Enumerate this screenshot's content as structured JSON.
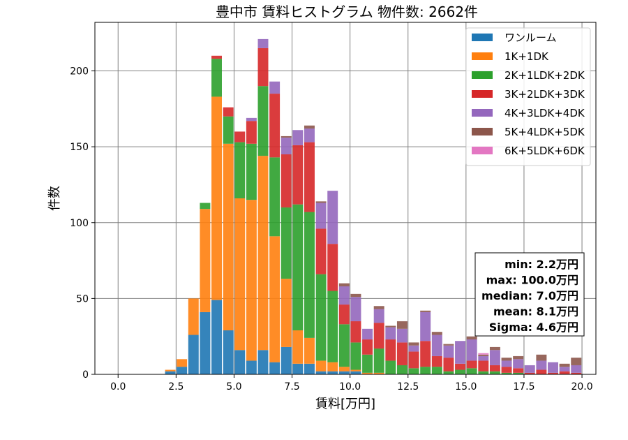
{
  "chart_data": {
    "type": "bar",
    "title": "豊中市 賃料ヒストグラム  物件数: 2662件",
    "xlabel": "賃料[万円]",
    "ylabel": "件数",
    "xlim": [
      -1.0,
      20.6
    ],
    "ylim": [
      0,
      232
    ],
    "xticks": [
      "0.0",
      "2.5",
      "5.0",
      "7.5",
      "10.0",
      "12.5",
      "15.0",
      "17.5",
      "20.0"
    ],
    "xtick_values": [
      0,
      2.5,
      5,
      7.5,
      10,
      12.5,
      15,
      17.5,
      20
    ],
    "yticks": [
      "0",
      "50",
      "100",
      "150",
      "200"
    ],
    "ytick_values": [
      0,
      50,
      100,
      150,
      200
    ],
    "grid": true,
    "legend_position": "top-right",
    "stacked": true,
    "bin_width": 0.5,
    "x": [
      2.0,
      2.5,
      3.0,
      3.5,
      4.0,
      4.5,
      5.0,
      5.5,
      6.0,
      6.5,
      7.0,
      7.5,
      8.0,
      8.5,
      9.0,
      9.5,
      10.0,
      10.5,
      11.0,
      11.5,
      12.0,
      12.5,
      13.0,
      13.5,
      14.0,
      14.5,
      15.0,
      15.5,
      16.0,
      16.5,
      17.0,
      17.5,
      18.0,
      18.5,
      19.0,
      19.5
    ],
    "series": [
      {
        "name": "ワンルーム",
        "color": "#1f77b4",
        "values": [
          2,
          5,
          26,
          41,
          49,
          29,
          16,
          9,
          16,
          8,
          18,
          7,
          7,
          2,
          2,
          2,
          2,
          0,
          0,
          0,
          0,
          0,
          0,
          0,
          0,
          0,
          0,
          0,
          0,
          0,
          0,
          0,
          0,
          0,
          0,
          0
        ]
      },
      {
        "name": "1K+1DK",
        "color": "#ff7f0e",
        "values": [
          1,
          5,
          24,
          68,
          134,
          123,
          100,
          106,
          128,
          83,
          45,
          22,
          17,
          7,
          6,
          3,
          1,
          1,
          1,
          0,
          0,
          0,
          0,
          0,
          0,
          0,
          0,
          0,
          0,
          0,
          0,
          0,
          0,
          0,
          0,
          0
        ]
      },
      {
        "name": "2K+1LDK+2DK",
        "color": "#2ca02c",
        "values": [
          0,
          0,
          0,
          4,
          25,
          18,
          37,
          37,
          46,
          52,
          47,
          83,
          83,
          57,
          47,
          28,
          18,
          12,
          16,
          9,
          6,
          4,
          5,
          5,
          2,
          3,
          4,
          2,
          2,
          1,
          1,
          0,
          0,
          0,
          0,
          0
        ]
      },
      {
        "name": "3K+2LDK+3DK",
        "color": "#d62728",
        "values": [
          0,
          0,
          0,
          0,
          2,
          6,
          7,
          15,
          25,
          42,
          35,
          39,
          46,
          30,
          31,
          13,
          14,
          10,
          17,
          14,
          15,
          11,
          17,
          7,
          9,
          4,
          5,
          7,
          4,
          4,
          3,
          1,
          3,
          1,
          2,
          1
        ]
      },
      {
        "name": "4K+3LDK+4DK",
        "color": "#9467bd",
        "values": [
          0,
          0,
          0,
          0,
          0,
          0,
          0,
          2,
          6,
          8,
          11,
          10,
          9,
          17,
          35,
          12,
          16,
          7,
          9,
          8,
          9,
          4,
          19,
          14,
          8,
          15,
          14,
          3,
          10,
          4,
          6,
          5,
          6,
          7,
          3,
          5
        ]
      },
      {
        "name": "5K+4LDK+5DK",
        "color": "#8c564b",
        "values": [
          0,
          0,
          0,
          0,
          0,
          0,
          0,
          0,
          0,
          0,
          1,
          0,
          2,
          1,
          0,
          2,
          2,
          0,
          2,
          1,
          5,
          2,
          1,
          2,
          1,
          0,
          2,
          1,
          2,
          2,
          2,
          0,
          4,
          0,
          2,
          5
        ]
      },
      {
        "name": "6K+5LDK+6DK",
        "color": "#e377c2",
        "values": [
          0,
          0,
          0,
          0,
          0,
          0,
          0,
          0,
          0,
          0,
          0,
          0,
          0,
          0,
          0,
          0,
          0,
          0,
          0,
          0,
          0,
          0,
          0,
          0,
          0,
          0,
          0,
          1,
          0,
          0,
          0,
          0,
          0,
          0,
          0,
          0
        ]
      }
    ],
    "stats": [
      "min: 2.2万円",
      "max: 100.0万円",
      "median: 7.0万円",
      "mean: 8.1万円",
      "Sigma: 4.6万円"
    ]
  }
}
